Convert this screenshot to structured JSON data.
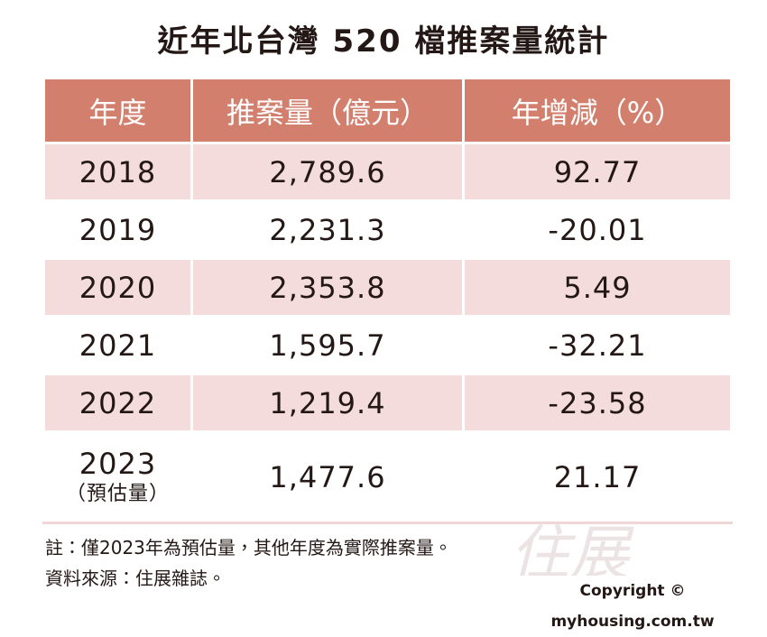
{
  "title": "近年北台灣 520 檔推案量統計",
  "table": {
    "headers": [
      "年度",
      "推案量（億元）",
      "年增減（%）"
    ],
    "rows": [
      {
        "year": "2018",
        "volume": "2,789.6",
        "change": "92.77"
      },
      {
        "year": "2019",
        "volume": "2,231.3",
        "change": "-20.01"
      },
      {
        "year": "2020",
        "volume": "2,353.8",
        "change": "5.49"
      },
      {
        "year": "2021",
        "volume": "1,595.7",
        "change": "-32.21"
      },
      {
        "year": "2022",
        "volume": "1,219.4",
        "change": "-23.58"
      },
      {
        "year": "2023",
        "year_note": "（預估量）",
        "volume": "1,477.6",
        "change": "21.17"
      }
    ]
  },
  "notes": [
    "註：僅2023年為預估量，其他年度為實際推案量。",
    "資料來源：住展雜誌。"
  ],
  "watermark": "住展",
  "copyright": "Copyright © myhousing.com.tw"
}
